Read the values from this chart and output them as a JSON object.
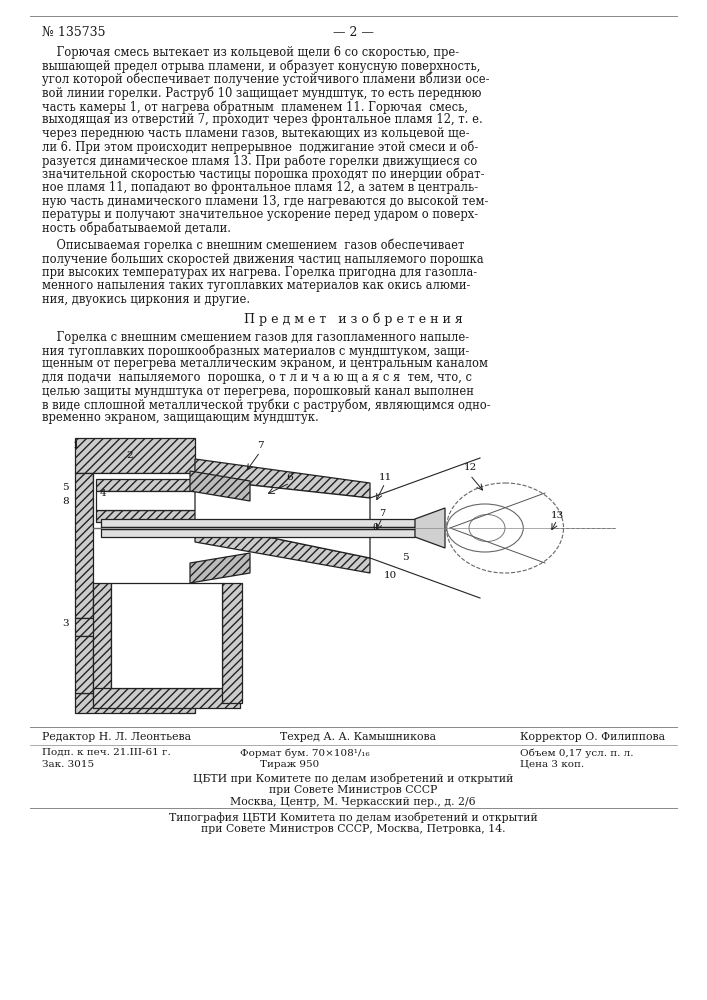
{
  "page_number": "№ 135735",
  "page_num_right": "— 2 —",
  "bg_color": "#ffffff",
  "text_color": "#1a1a1a",
  "body_text_1": "    Горючая смесь вытекает из кольцевой щели 6 со скоростью, пре-\nвышающей предел отрыва пламени, и образует конусную поверхность,\nугол которой обеспечивает получение устойчивого пламени вблизи осе-\nвой линии горелки. Раструб 10 защищает мундштук, то есть переднюю\nчасть камеры 1, от нагрева обратным  пламенем 11. Горючая  смесь,\nвыходящая из отверстий 7, проходит через фронтальное пламя 12, т. е.\nчерез переднюю часть пламени газов, вытекающих из кольцевой ще-\nли 6. При этом происходит непрерывное  поджигание этой смеси и об-\nразуется динамическое пламя 13. При работе горелки движущиеся со\nзначительной скоростью частицы порошка проходят по инерции обрат-\nное пламя 11, попадают во фронтальное пламя 12, а затем в централь-\nную часть динамического пламени 13, где нагреваются до высокой тем-\nпературы и получают значительное ускорение перед ударом о поверх-\nность обрабатываемой детали.",
  "body_text_2": "    Описываемая горелка с внешним смешением  газов обеспечивает\nполучение больших скоростей движения частиц напыляемого порошка\nпри высоких температурах их нагрева. Горелка пригодна для газопла-\nменного напыления таких тугоплавких материалов как окись алюми-\nния, двуокись циркония и другие.",
  "predmet_header": "П р е д м е т   и з о б р е т е н и я",
  "predmet_text": "    Горелка с внешним смешением газов для газопламенного напыле-\nния тугоплавких порошкообразных материалов с мундштуком, защи-\nщенным от перегрева металлическим экраном, и центральным каналом\nдля подачи  напыляемого  порошка, о т л и ч а ю щ а я с я  тем, что, с\nцелью защиты мундштука от перегрева, порошковый канал выполнен\nв виде сплошной металлической трубки с раструбом, являющимся одно-\nвременно экраном, защищающим мундштук.",
  "footer_editor": "Редактор Н. Л. Леонтьева",
  "footer_tech": "Техред А. А. Камышникова",
  "footer_corrector": "Корректор О. Филиппова",
  "footer_podp": "Подп. к печ. 21.III-61 г.",
  "footer_format": "Формат бум. 70×108¹/₁₆",
  "footer_volume": "Объем 0,17 усл. п. л.",
  "footer_zak": "Зак. 3015",
  "footer_tirazh": "Тираж 950",
  "footer_price": "Цена 3 коп.",
  "footer_cbti_line1": "ЦБТИ при Комитете по делам изобретений и открытий",
  "footer_cbti_line2": "при Совете Министров СССР",
  "footer_cbti_line3": "Москва, Центр, М. Черкасский пер., д. 2/6",
  "footer_tip_line1": "Типография ЦБТИ Комитета по делам изобретений и открытий",
  "footer_tip_line2": "при Совете Министров СССР, Москва, Петровка, 14.",
  "hatch_color": "#444444",
  "line_color": "#222222"
}
